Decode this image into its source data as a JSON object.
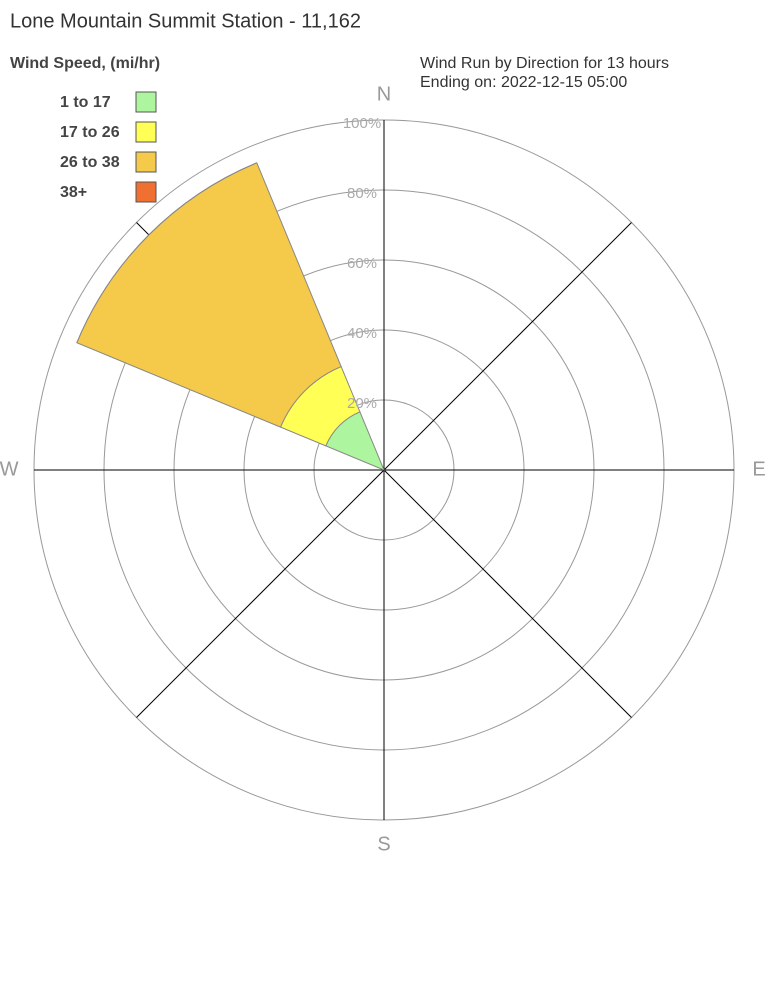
{
  "chart_data": {
    "type": "windrose",
    "title": "Lone Mountain Summit Station - 11,162",
    "legend_title": "Wind Speed, (mi/hr)",
    "subtitle": [
      "Wind Run by Direction for 13 hours",
      "Ending on: 2022-12-15 05:00"
    ],
    "categories": [
      "N",
      null,
      "E",
      null,
      "S",
      null,
      "W",
      null
    ],
    "series": [
      {
        "name": "1 to 17",
        "color": "#aef5a0",
        "values": [
          0,
          0,
          0,
          0,
          0,
          0,
          0,
          18
        ]
      },
      {
        "name": "17 to 26",
        "color": "#ffff55",
        "values": [
          0,
          0,
          0,
          0,
          0,
          0,
          0,
          14
        ]
      },
      {
        "name": "26 to 38",
        "color": "#f5c94a",
        "values": [
          0,
          0,
          0,
          0,
          0,
          0,
          0,
          63
        ]
      },
      {
        "name": "38+",
        "color": "#ef7030",
        "values": [
          0,
          0,
          0,
          0,
          0,
          0,
          0,
          0
        ]
      }
    ],
    "rlim": [
      0,
      100
    ],
    "rticks": [
      {
        "value": 20,
        "label": "20%"
      },
      {
        "value": 40,
        "label": "40%"
      },
      {
        "value": 60,
        "label": "60%"
      },
      {
        "value": 80,
        "label": "80%"
      },
      {
        "value": 100,
        "label": "100%"
      }
    ],
    "legend_position": "upper left"
  }
}
